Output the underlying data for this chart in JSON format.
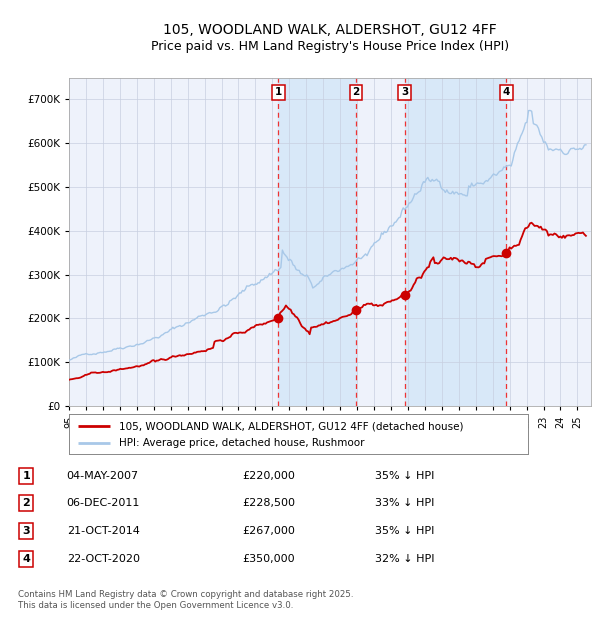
{
  "title": "105, WOODLAND WALK, ALDERSHOT, GU12 4FF",
  "subtitle": "Price paid vs. HM Land Registry's House Price Index (HPI)",
  "title_fontsize": 10,
  "subtitle_fontsize": 9,
  "background_color": "#ffffff",
  "plot_bg_color": "#eef2fb",
  "grid_color": "#c8cfe0",
  "hpi_color": "#a8c8e8",
  "price_color": "#cc0000",
  "dashed_line_color": "#ee3333",
  "shade_color": "#d8e8f8",
  "ylim": [
    0,
    750000
  ],
  "yticks": [
    0,
    100000,
    200000,
    300000,
    400000,
    500000,
    600000,
    700000
  ],
  "xlim_start": 1995.0,
  "xlim_end": 2025.8,
  "purchases": [
    {
      "label": "1",
      "year": 2007.35,
      "price": 220000,
      "date": "04-MAY-2007",
      "hpi_pct": "35% ↓ HPI"
    },
    {
      "label": "2",
      "year": 2011.92,
      "price": 228500,
      "date": "06-DEC-2011",
      "hpi_pct": "33% ↓ HPI"
    },
    {
      "label": "3",
      "year": 2014.8,
      "price": 267000,
      "date": "21-OCT-2014",
      "hpi_pct": "35% ↓ HPI"
    },
    {
      "label": "4",
      "year": 2020.81,
      "price": 350000,
      "date": "22-OCT-2020",
      "hpi_pct": "32% ↓ HPI"
    }
  ],
  "legend_entries": [
    "105, WOODLAND WALK, ALDERSHOT, GU12 4FF (detached house)",
    "HPI: Average price, detached house, Rushmoor"
  ],
  "footer": "Contains HM Land Registry data © Crown copyright and database right 2025.\nThis data is licensed under the Open Government Licence v3.0."
}
